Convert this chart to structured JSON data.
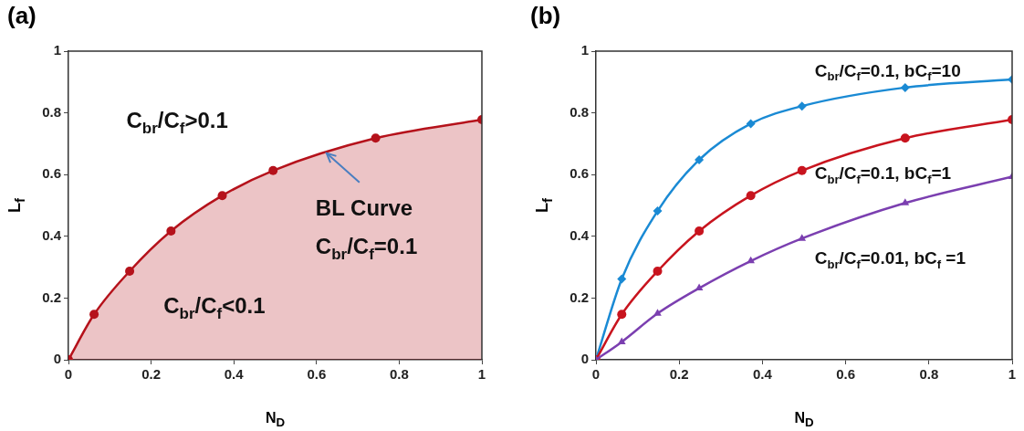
{
  "chart_data": [
    {
      "type": "area",
      "title": "(a)",
      "xlabel": "N$_{D}$",
      "ylabel": "L$_{f}$",
      "xlim": [
        0,
        1
      ],
      "ylim": [
        0,
        1
      ],
      "xticks": [
        0,
        0.2,
        0.4,
        0.6,
        0.8,
        1
      ],
      "yticks": [
        0,
        0.2,
        0.4,
        0.6,
        0.8,
        1
      ],
      "grid": false,
      "legend": false,
      "x": [
        0,
        0.062,
        0.148,
        0.248,
        0.372,
        0.495,
        0.743,
        1
      ],
      "series": [
        {
          "color": "#b5121b",
          "values": [
            0,
            0.147,
            0.287,
            0.417,
            0.532,
            0.613,
            0.718,
            0.778
          ],
          "marker": "circle"
        }
      ],
      "annotations": [
        "C$_{br}$/C$_{f}$>0.1",
        "C$_{br}$/C$_{f}$<0.1",
        {
          "text": "BL Curve\nC$_{br}$/C$_{f}$=0.1",
          "x": 0.62,
          "y": 0.675
        }
      ]
    },
    {
      "type": "line",
      "title": "(b)",
      "xlabel": "N$_{D}$",
      "ylabel": "L$_{f}$",
      "xlim": [
        0,
        1
      ],
      "ylim": [
        0,
        1
      ],
      "xticks": [
        0,
        0.2,
        0.4,
        0.6,
        0.8,
        1
      ],
      "yticks": [
        0,
        0.2,
        0.4,
        0.6,
        0.8,
        1
      ],
      "grid": false,
      "legend": false,
      "x": [
        0,
        0.062,
        0.148,
        0.248,
        0.372,
        0.495,
        0.743,
        1
      ],
      "series": [
        {
          "name": "C$_{br}$/C$_{f}$=0.1, bC$_{f}$=10",
          "color": "#1a8ad4",
          "marker": "diamond",
          "values": [
            0,
            0.262,
            0.482,
            0.648,
            0.765,
            0.822,
            0.882,
            0.908
          ]
        },
        {
          "name": "C$_{br}$/C$_{f}$=0.1, bC$_{f}$=1",
          "color": "#c8141e",
          "marker": "circle",
          "values": [
            0,
            0.147,
            0.287,
            0.417,
            0.532,
            0.613,
            0.718,
            0.778
          ]
        },
        {
          "name": "C$_{br}$/C$_{f}$=0.01, bC$_{f}$ =1",
          "color": "#7b3fb0",
          "marker": "triangle",
          "values": [
            0,
            0.058,
            0.15,
            0.232,
            0.32,
            0.393,
            0.508,
            0.593
          ]
        }
      ]
    }
  ]
}
